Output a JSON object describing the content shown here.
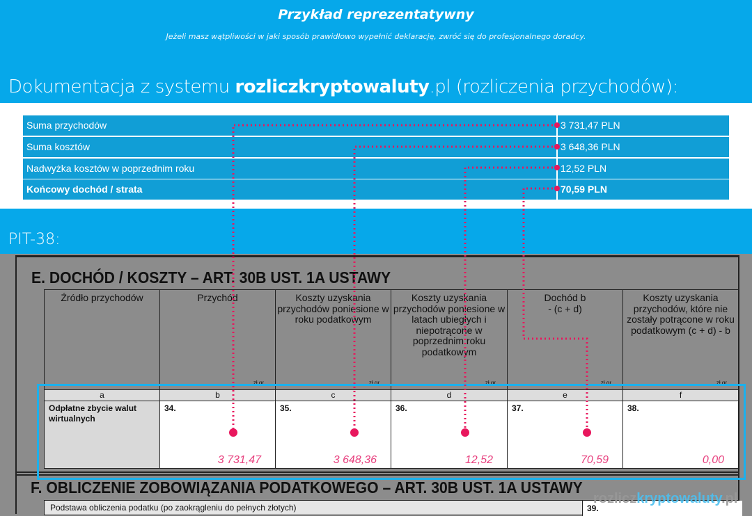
{
  "banner": {
    "title": "Przykład reprezentatywny",
    "subtitle": "Jeżeli masz wątpliwości w jaki sposób prawidłowo wypełnić deklarację, zwróć się do profesjonalnego doradcy.",
    "doc_prefix": "Dokumentacja z systemu ",
    "doc_brand": "rozliczkryptowaluty",
    "doc_suffix": ".pl (rozliczenia przychodów):"
  },
  "summary": {
    "rows": [
      {
        "label": "Suma przychodów",
        "value": "3 731,47 PLN"
      },
      {
        "label": "Suma kosztów",
        "value": "3 648,36 PLN"
      },
      {
        "label": "Nadwyżka kosztów w poprzednim roku",
        "value": "12,52 PLN"
      },
      {
        "label": "Końcowy dochód / strata",
        "value": "70,59 PLN"
      }
    ]
  },
  "pit_label": "PIT-38:",
  "section_e": {
    "title": "E. DOCHÓD / KOSZTY – ART. 30B UST. 1A USTAWY",
    "currency_units": "zł   gr",
    "columns": [
      {
        "header": "Źródło przychodów",
        "letter": "a"
      },
      {
        "header": "Przychód",
        "letter": "b",
        "num": "34.",
        "value": "3 731,47"
      },
      {
        "header": "Koszty uzyskania przychodów poniesione w roku podatkowym",
        "letter": "c",
        "num": "35.",
        "value": "3 648,36"
      },
      {
        "header": "Koszty uzyskania przychodów poniesione w latach ubiegłych i niepotrącone w poprzednim roku podatkowym",
        "letter": "d",
        "num": "36.",
        "value": "12,52"
      },
      {
        "header": "Dochód b - (c + d)",
        "letter": "e",
        "num": "37.",
        "value": "70,59"
      },
      {
        "header": "Koszty uzyskania przychodów, które nie zostały potrącone w roku podatkowym (c + d) - b",
        "letter": "f",
        "num": "38.",
        "value": "0,00"
      }
    ],
    "source": "Odpłatne zbycie walut wirtualnych"
  },
  "section_f": {
    "title": "F. OBLICZENIE ZOBOWIĄZANIA PODATKOWEGO – ART. 30B UST. 1A USTAWY",
    "row_label": "Podstawa obliczenia podatku  (po zaokrągleniu do pełnych złotych)",
    "row_num": "39."
  },
  "watermark": {
    "a": "rozlicz",
    "b": "kryptowaluty",
    ".pl": ".pl"
  },
  "colors": {
    "accent": "#06a8ea",
    "pink": "#e8175d",
    "row": "#119ed6"
  }
}
